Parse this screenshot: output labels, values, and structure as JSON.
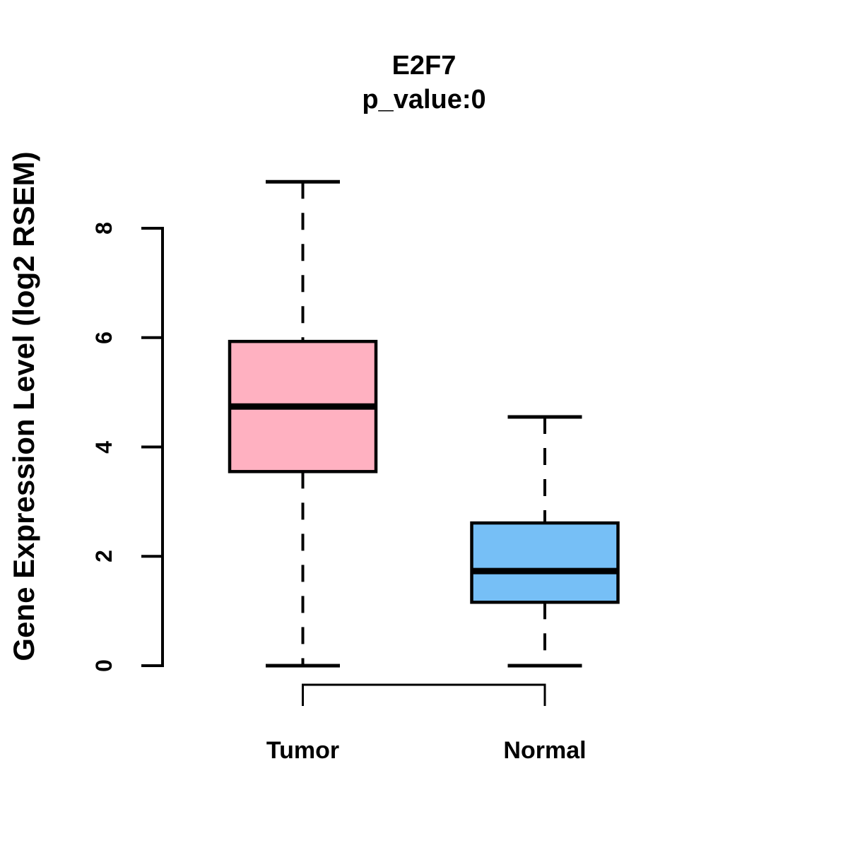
{
  "chart_data": {
    "type": "boxplot",
    "title": "E2F7",
    "subtitle": "p_value:0",
    "ylabel": "Gene Expression Level (log2 RSEM)",
    "xlabel": "",
    "ylim": [
      0,
      8.85
    ],
    "yticks": [
      "0",
      "2",
      "4",
      "6",
      "8"
    ],
    "grid": false,
    "legend": "none",
    "background_color": "#FFFFFF",
    "line_color": "#000000",
    "groups": [
      {
        "label": "Tumor",
        "box_color": "#FFB1C1",
        "whisker_low": 0,
        "q1": 3.55,
        "median": 4.74,
        "q3": 5.93,
        "whisker_high": 8.85
      },
      {
        "label": "Normal",
        "box_color": "#76BFF6",
        "whisker_low": 0,
        "q1": 1.16,
        "median": 1.73,
        "q3": 2.61,
        "whisker_high": 4.55
      }
    ],
    "comparison_bracket": {
      "between": [
        "Tumor",
        "Normal"
      ]
    }
  }
}
